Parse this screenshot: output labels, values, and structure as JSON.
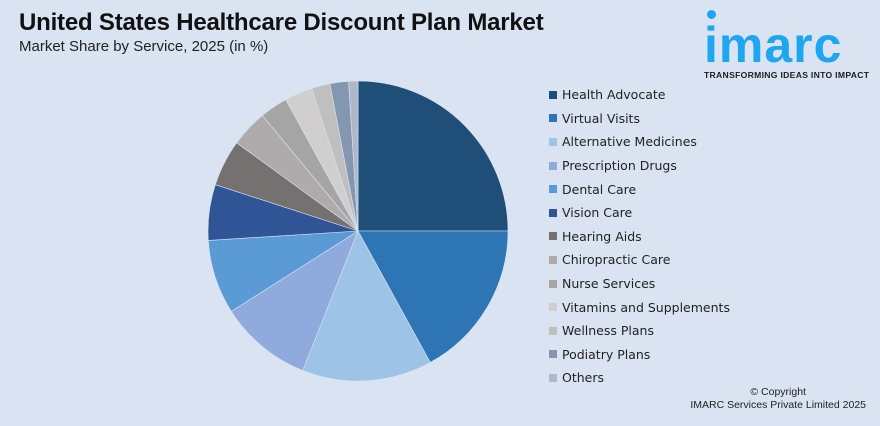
{
  "header": {
    "title": "United States Healthcare Discount Plan Market",
    "subtitle": "Market Share by Service, 2025 (in %)"
  },
  "logo": {
    "wordmark": "imarc",
    "tagline": "TRANSFORMING IDEAS INTO IMPACT",
    "color": "#1ea6f0"
  },
  "footer": {
    "copyright_line1": "© Copyright",
    "copyright_line2": "IMARC Services Private Limited 2025"
  },
  "chart_data": {
    "type": "pie",
    "title": "United States Healthcare Discount Plan Market",
    "subtitle": "Market Share by Service, 2025 (in %)",
    "legend_position": "right",
    "start_angle": "12 o'clock, clockwise",
    "categories": [
      "Health Advocate",
      "Virtual Visits",
      "Alternative Medicines",
      "Prescription Drugs",
      "Dental Care",
      "Vision Care",
      "Hearing Aids",
      "Chiropractic Care",
      "Nurse Services",
      "Vitamins and Supplements",
      "Wellness Plans",
      "Podiatry Plans",
      "Others"
    ],
    "values": [
      25,
      17,
      14,
      10,
      8,
      6,
      5,
      4,
      3,
      3,
      2,
      2,
      1
    ],
    "colors": [
      "#1f4e79",
      "#2e75b6",
      "#9dc3e6",
      "#8faadc",
      "#5b9bd5",
      "#2f5597",
      "#767171",
      "#afabab",
      "#a5a5a5",
      "#d0cece",
      "#bfbfbf",
      "#8497b0",
      "#adb9ca"
    ]
  }
}
